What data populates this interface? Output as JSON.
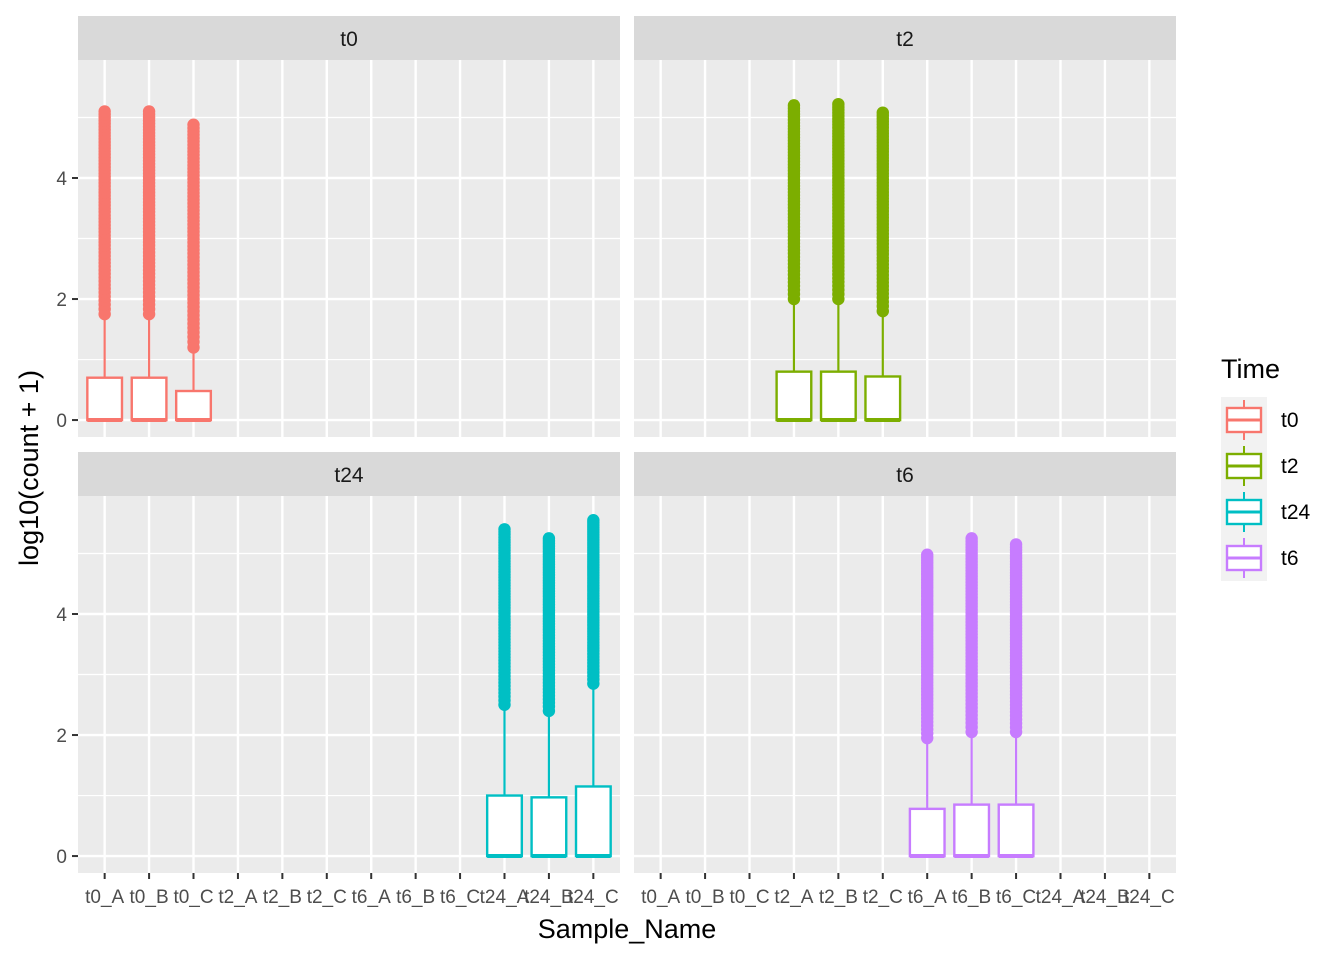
{
  "chart_data": {
    "type": "boxplot",
    "title": "",
    "xlabel": "Sample_Name",
    "ylabel": "log10(count + 1)",
    "ylim": [
      -0.28,
      5.95
    ],
    "yticks": [
      0,
      2,
      4
    ],
    "categories": [
      "t0_A",
      "t0_B",
      "t0_C",
      "t2_A",
      "t2_B",
      "t2_C",
      "t6_A",
      "t6_B",
      "t6_C",
      "t24_A",
      "t24_B",
      "t24_C"
    ],
    "legend": {
      "title": "Time",
      "position": "right",
      "items": [
        {
          "label": "t0",
          "color": "#F8766D"
        },
        {
          "label": "t2",
          "color": "#7CAE00"
        },
        {
          "label": "t24",
          "color": "#00BFC4"
        },
        {
          "label": "t6",
          "color": "#C77CFF"
        }
      ]
    },
    "facets": [
      {
        "label": "t0",
        "color": "#F8766D",
        "boxes": [
          {
            "sample": "t0_A",
            "min": 0,
            "q1": 0,
            "median": 0,
            "q3": 0.7,
            "whisker_high": 1.75,
            "outlier_max": 5.1
          },
          {
            "sample": "t0_B",
            "min": 0,
            "q1": 0,
            "median": 0,
            "q3": 0.7,
            "whisker_high": 1.75,
            "outlier_max": 5.1
          },
          {
            "sample": "t0_C",
            "min": 0,
            "q1": 0,
            "median": 0,
            "q3": 0.48,
            "whisker_high": 1.2,
            "outlier_max": 4.88
          }
        ]
      },
      {
        "label": "t2",
        "color": "#7CAE00",
        "boxes": [
          {
            "sample": "t2_A",
            "min": 0,
            "q1": 0,
            "median": 0,
            "q3": 0.8,
            "whisker_high": 2.0,
            "outlier_max": 5.2
          },
          {
            "sample": "t2_B",
            "min": 0,
            "q1": 0,
            "median": 0,
            "q3": 0.8,
            "whisker_high": 2.0,
            "outlier_max": 5.22
          },
          {
            "sample": "t2_C",
            "min": 0,
            "q1": 0,
            "median": 0,
            "q3": 0.72,
            "whisker_high": 1.8,
            "outlier_max": 5.08
          }
        ]
      },
      {
        "label": "t24",
        "color": "#00BFC4",
        "boxes": [
          {
            "sample": "t24_A",
            "min": 0,
            "q1": 0,
            "median": 0,
            "q3": 1.0,
            "whisker_high": 2.5,
            "outlier_max": 5.4
          },
          {
            "sample": "t24_B",
            "min": 0,
            "q1": 0,
            "median": 0,
            "q3": 0.97,
            "whisker_high": 2.4,
            "outlier_max": 5.25
          },
          {
            "sample": "t24_C",
            "min": 0,
            "q1": 0,
            "median": 0,
            "q3": 1.15,
            "whisker_high": 2.85,
            "outlier_max": 5.55
          }
        ]
      },
      {
        "label": "t6",
        "color": "#C77CFF",
        "boxes": [
          {
            "sample": "t6_A",
            "min": 0,
            "q1": 0,
            "median": 0,
            "q3": 0.78,
            "whisker_high": 1.95,
            "outlier_max": 4.98
          },
          {
            "sample": "t6_B",
            "min": 0,
            "q1": 0,
            "median": 0,
            "q3": 0.85,
            "whisker_high": 2.05,
            "outlier_max": 5.25
          },
          {
            "sample": "t6_C",
            "min": 0,
            "q1": 0,
            "median": 0,
            "q3": 0.85,
            "whisker_high": 2.05,
            "outlier_max": 5.15
          }
        ]
      }
    ]
  }
}
